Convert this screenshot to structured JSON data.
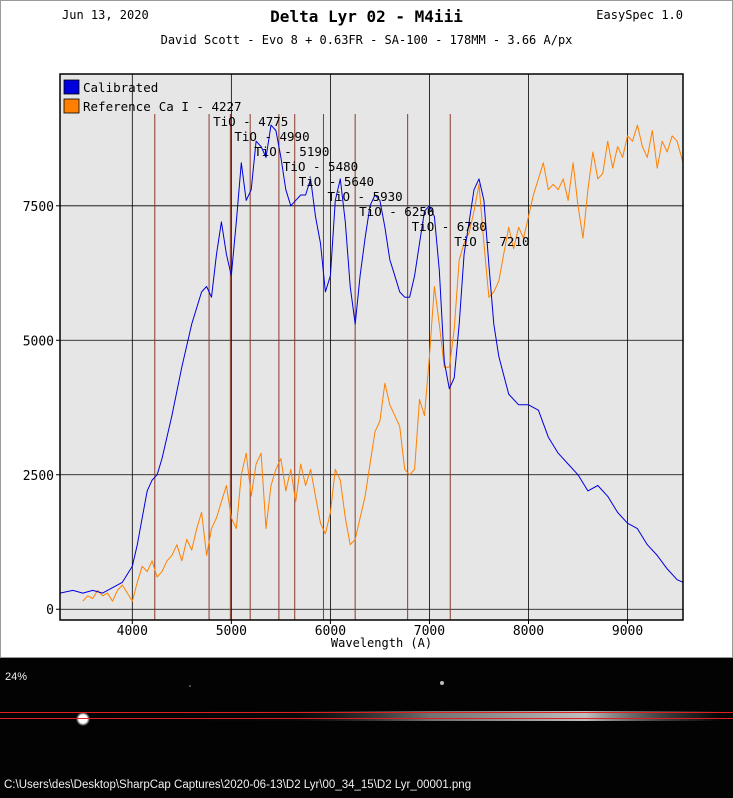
{
  "header": {
    "date": "Jun 13, 2020",
    "title": "Delta Lyr 02 - M4iii",
    "software": "EasySpec 1.0",
    "subtitle": "David Scott - Evo 8 + 0.63FR - SA-100 - 178MM - 3.66 A/px"
  },
  "chart_data": {
    "type": "line",
    "title": "Delta Lyr 02 - M4iii",
    "xlabel": "Wavelength (A)",
    "ylabel": "",
    "xlim": [
      3270,
      9560
    ],
    "ylim": [
      -200,
      9950
    ],
    "xticks": [
      4000,
      5000,
      6000,
      7000,
      8000,
      9000
    ],
    "yticks": [
      0,
      2500,
      5000,
      7500
    ],
    "grid": true,
    "legend_position": "top-left",
    "series": [
      {
        "name": "Calibrated",
        "color": "#0000dd",
        "x": [
          3270,
          3400,
          3500,
          3600,
          3700,
          3800,
          3900,
          4000,
          4050,
          4100,
          4150,
          4200,
          4250,
          4300,
          4400,
          4500,
          4600,
          4700,
          4750,
          4800,
          4850,
          4900,
          4950,
          5000,
          5050,
          5100,
          5150,
          5200,
          5250,
          5300,
          5350,
          5400,
          5450,
          5500,
          5550,
          5600,
          5650,
          5700,
          5750,
          5800,
          5850,
          5900,
          5950,
          6000,
          6050,
          6100,
          6150,
          6200,
          6250,
          6300,
          6350,
          6400,
          6450,
          6500,
          6550,
          6600,
          6650,
          6700,
          6750,
          6800,
          6850,
          6900,
          6950,
          7000,
          7050,
          7100,
          7150,
          7200,
          7250,
          7300,
          7350,
          7400,
          7450,
          7500,
          7550,
          7600,
          7650,
          7700,
          7800,
          7900,
          8000,
          8100,
          8200,
          8300,
          8400,
          8500,
          8600,
          8700,
          8800,
          8900,
          9000,
          9100,
          9200,
          9300,
          9400,
          9500,
          9560
        ],
        "y": [
          300,
          350,
          300,
          350,
          300,
          400,
          500,
          800,
          1200,
          1700,
          2200,
          2400,
          2500,
          2800,
          3600,
          4500,
          5300,
          5900,
          6000,
          5800,
          6600,
          7200,
          6600,
          6200,
          7200,
          8300,
          7600,
          7800,
          8700,
          8600,
          8400,
          9000,
          8900,
          8400,
          7800,
          7500,
          7600,
          7700,
          7700,
          8000,
          7300,
          6800,
          5900,
          6200,
          7600,
          8000,
          7200,
          6000,
          5300,
          6200,
          6900,
          7500,
          7700,
          7600,
          7100,
          6500,
          6200,
          5900,
          5800,
          5800,
          6200,
          6800,
          7400,
          7500,
          7300,
          6300,
          4600,
          4100,
          4300,
          5300,
          6600,
          7200,
          7800,
          8000,
          7600,
          6400,
          5300,
          4700,
          4000,
          3800,
          3800,
          3700,
          3200,
          2900,
          2700,
          2500,
          2200,
          2300,
          2100,
          1800,
          1600,
          1500,
          1200,
          1000,
          750,
          550,
          500
        ]
      },
      {
        "name": "Reference",
        "color": "#ff8000",
        "x": [
          3500,
          3550,
          3600,
          3650,
          3700,
          3750,
          3800,
          3850,
          3900,
          3950,
          4000,
          4050,
          4100,
          4150,
          4200,
          4250,
          4300,
          4350,
          4400,
          4450,
          4500,
          4550,
          4600,
          4650,
          4700,
          4750,
          4800,
          4850,
          4900,
          4950,
          5000,
          5050,
          5100,
          5150,
          5200,
          5250,
          5300,
          5350,
          5400,
          5450,
          5500,
          5550,
          5600,
          5650,
          5700,
          5750,
          5800,
          5850,
          5900,
          5950,
          6000,
          6050,
          6100,
          6150,
          6200,
          6250,
          6300,
          6350,
          6400,
          6450,
          6500,
          6550,
          6600,
          6650,
          6700,
          6750,
          6800,
          6850,
          6900,
          6950,
          7000,
          7050,
          7100,
          7150,
          7200,
          7250,
          7300,
          7350,
          7400,
          7450,
          7500,
          7550,
          7600,
          7650,
          7700,
          7750,
          7800,
          7850,
          7900,
          7950,
          8000,
          8050,
          8100,
          8150,
          8200,
          8250,
          8300,
          8350,
          8400,
          8450,
          8500,
          8550,
          8600,
          8650,
          8700,
          8750,
          8800,
          8850,
          8900,
          8950,
          9000,
          9050,
          9100,
          9150,
          9200,
          9250,
          9300,
          9350,
          9400,
          9450,
          9500,
          9560
        ],
        "y": [
          150,
          250,
          200,
          350,
          250,
          300,
          150,
          350,
          450,
          300,
          150,
          500,
          800,
          700,
          900,
          600,
          700,
          900,
          1000,
          1200,
          900,
          1300,
          1100,
          1500,
          1800,
          1000,
          1500,
          1700,
          2000,
          2300,
          1700,
          1500,
          2500,
          2900,
          2100,
          2700,
          2900,
          1500,
          2300,
          2600,
          2800,
          2200,
          2600,
          2000,
          2700,
          2300,
          2600,
          2100,
          1600,
          1400,
          1800,
          2600,
          2400,
          1700,
          1200,
          1300,
          1700,
          2100,
          2700,
          3300,
          3500,
          4200,
          3800,
          3600,
          3400,
          2600,
          2500,
          2600,
          3900,
          3600,
          4700,
          6000,
          5300,
          4500,
          4500,
          5200,
          6500,
          6800,
          7000,
          7400,
          7900,
          6800,
          5800,
          5900,
          6100,
          6600,
          7100,
          6700,
          7100,
          6900,
          7300,
          7700,
          8000,
          8300,
          7800,
          7900,
          7800,
          8000,
          7600,
          8300,
          7500,
          6900,
          7800,
          8500,
          8000,
          8100,
          8700,
          8200,
          8600,
          8400,
          8800,
          8700,
          9000,
          8600,
          8400,
          8900,
          8200,
          8700,
          8500,
          8800,
          8700,
          8300
        ]
      }
    ],
    "annotations": [
      {
        "label": "Ca I - 4227",
        "x": 4227
      },
      {
        "label": "TiO - 4775",
        "x": 4775
      },
      {
        "label": "TiO - 4990",
        "x": 4990
      },
      {
        "label": "TiO - 5190",
        "x": 5190
      },
      {
        "label": "TiO - 5480",
        "x": 5480
      },
      {
        "label": "TiO - 5640",
        "x": 5640
      },
      {
        "label": "TiO - 5930",
        "x": 5930
      },
      {
        "label": "TiO - 6250",
        "x": 6250
      },
      {
        "label": "TiO - 6780",
        "x": 6780
      },
      {
        "label": "TiO - 7210",
        "x": 7210
      }
    ]
  },
  "capture": {
    "zoom": "24%",
    "file_path": "C:\\Users\\des\\Desktop\\SharpCap Captures\\2020-06-13\\D2 Lyr\\00_34_15\\D2 Lyr_00001.png"
  }
}
